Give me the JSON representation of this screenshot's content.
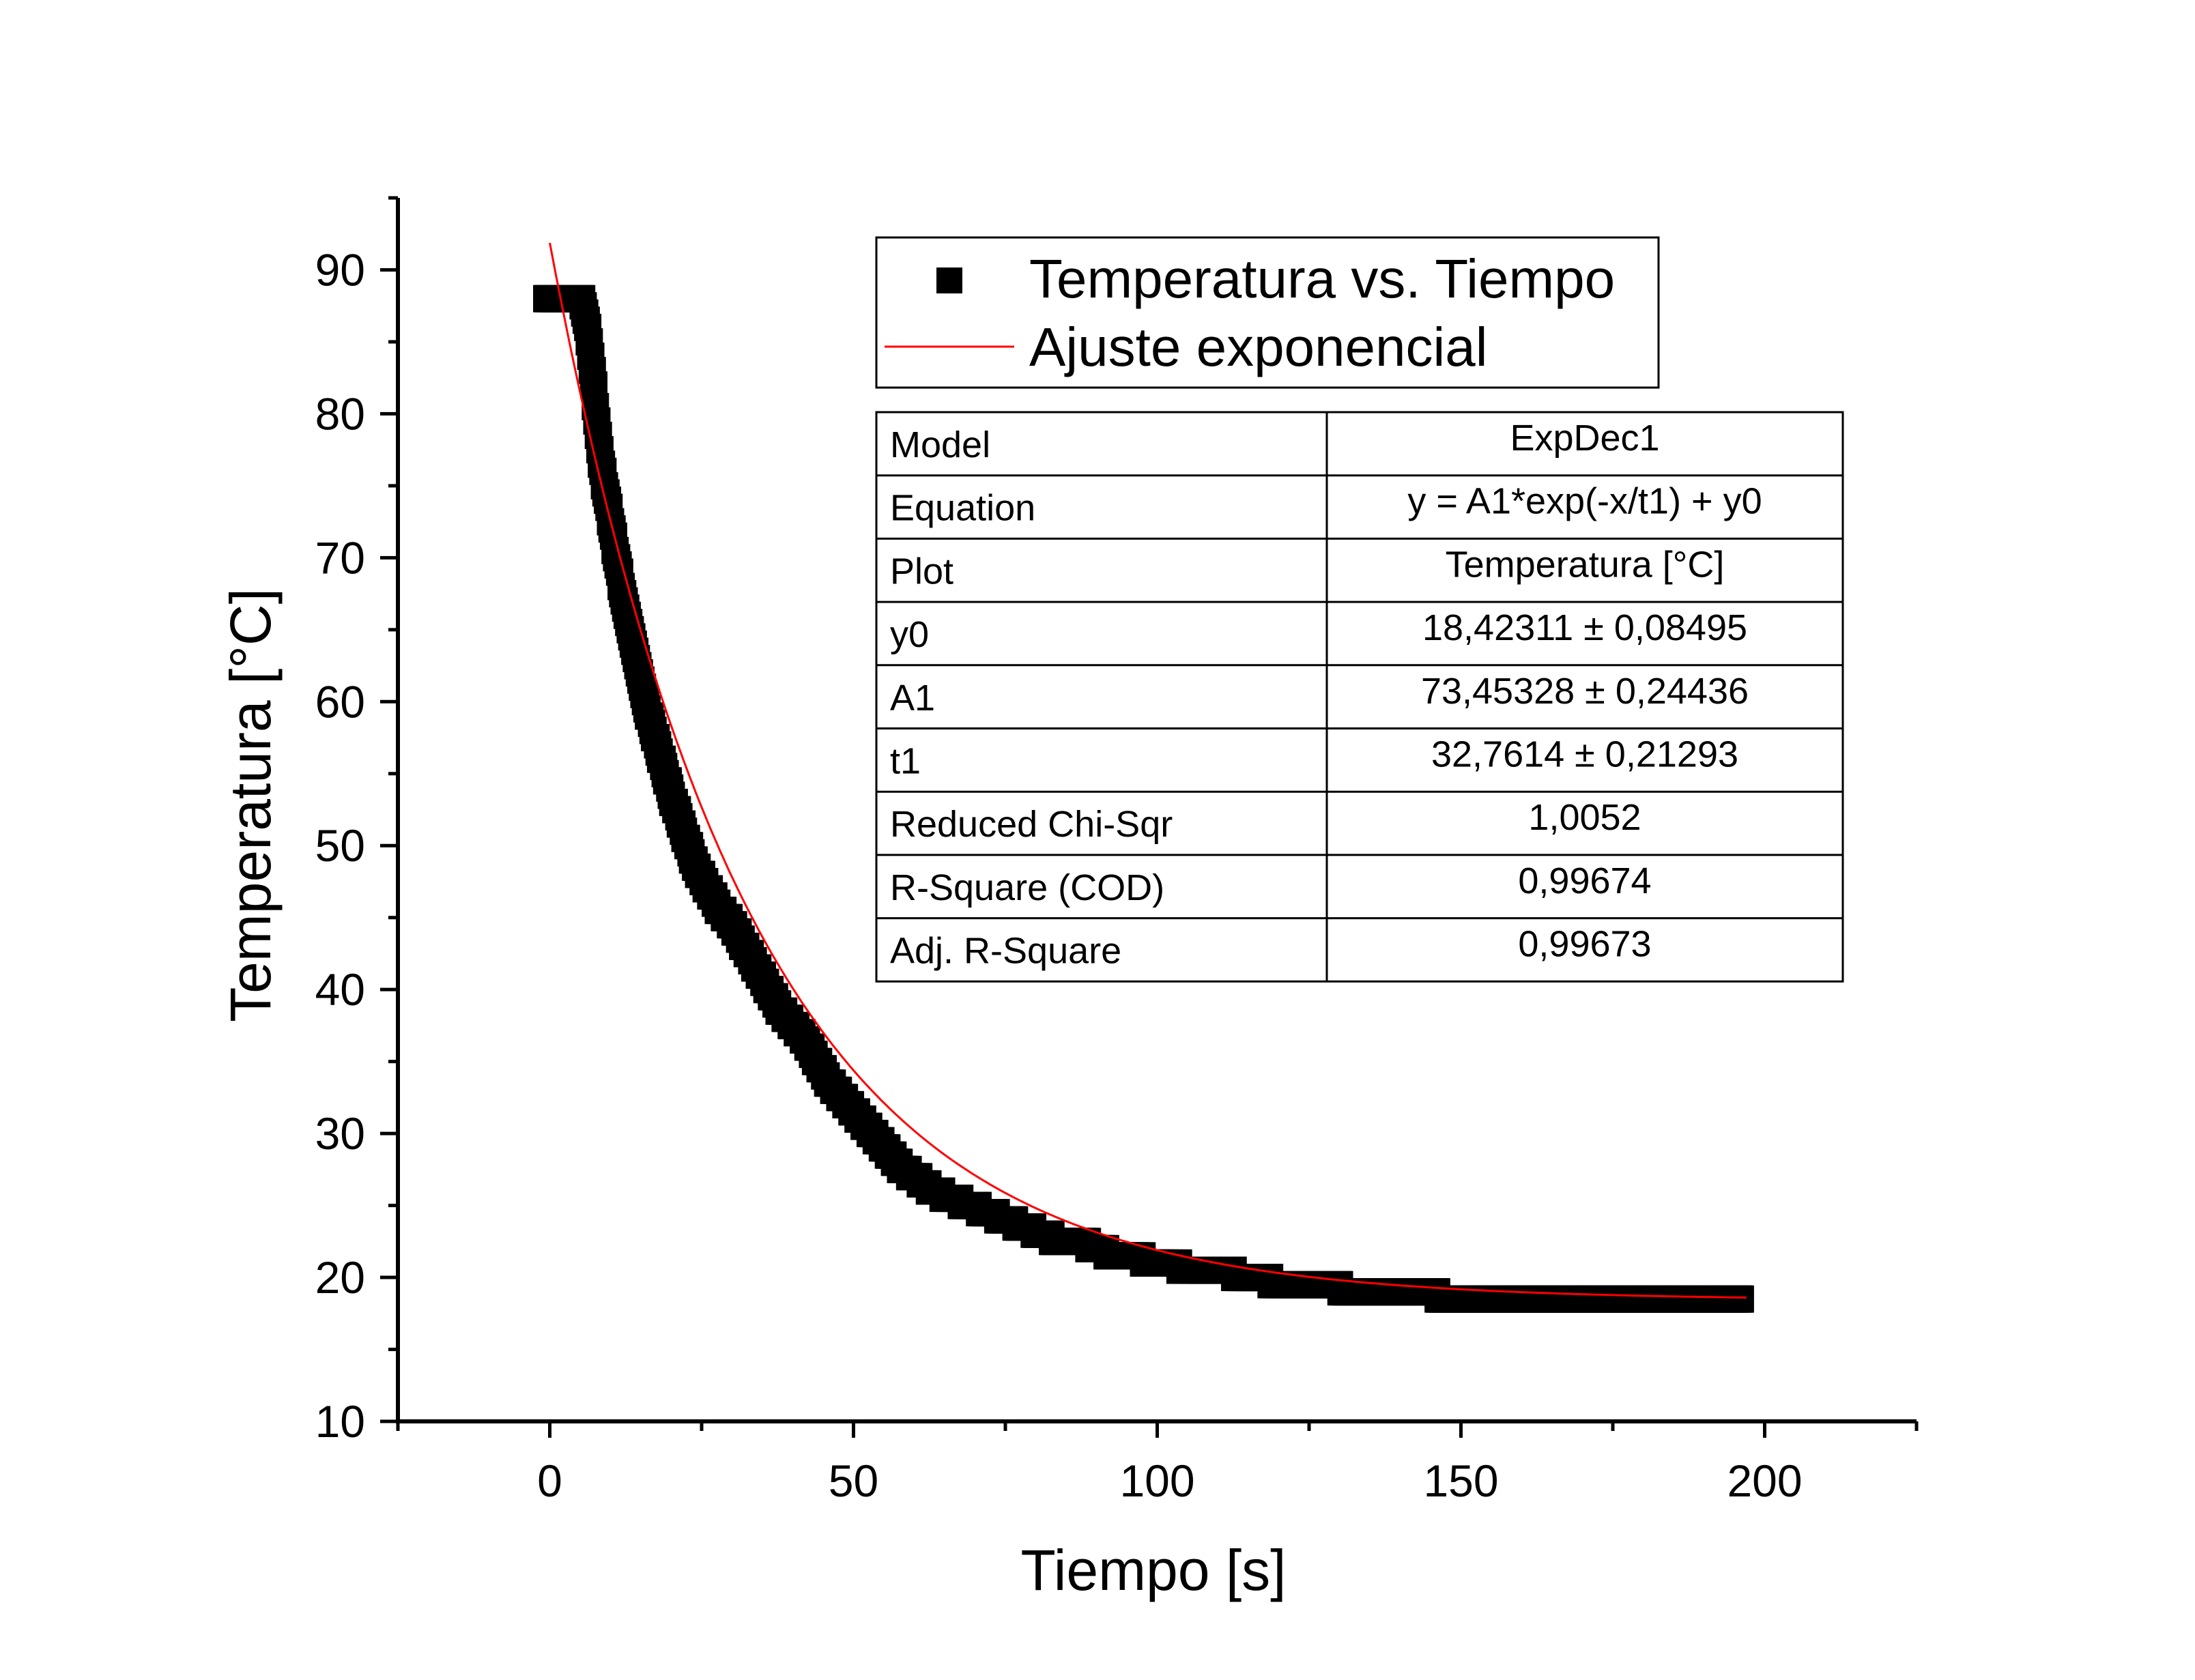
{
  "chart_data": {
    "type": "scatter",
    "xlabel": "Tiempo [s]",
    "ylabel": "Temperatura [°C]",
    "xlim": [
      -25,
      225
    ],
    "ylim": [
      10,
      95
    ],
    "x_ticks": [
      "0",
      "50",
      "100",
      "150",
      "200"
    ],
    "x_tick_values": [
      0,
      50,
      100,
      150,
      200
    ],
    "y_ticks": [
      "10",
      "20",
      "30",
      "40",
      "50",
      "60",
      "70",
      "80",
      "90"
    ],
    "y_tick_values": [
      10,
      20,
      30,
      40,
      50,
      60,
      70,
      80,
      90
    ],
    "grid": false,
    "legend_position": "top-right",
    "series": [
      {
        "name": "Temperatura vs. Tiempo",
        "kind": "scatter",
        "marker": "square",
        "color": "#000000",
        "x": [
          -0.5,
          0,
          0.5,
          1,
          1.5,
          2,
          2.5,
          3,
          3.5,
          4,
          4.5,
          5,
          5.5,
          6,
          6.5,
          7,
          7.5,
          8,
          8.5,
          9,
          9.5,
          10,
          11,
          12,
          13,
          14,
          15,
          16,
          17,
          18,
          19,
          20,
          22,
          24,
          26,
          28,
          30,
          32,
          34,
          36,
          38,
          40,
          42,
          44,
          46,
          48,
          50,
          52,
          54,
          56,
          58,
          60,
          63,
          66,
          69,
          72,
          75,
          78,
          81,
          84,
          87,
          90,
          93,
          96,
          99,
          102,
          105,
          108,
          111,
          114,
          117,
          120,
          124,
          128,
          132,
          136,
          140,
          144,
          148,
          152,
          156,
          160,
          164,
          168,
          172,
          176,
          180,
          184,
          188,
          192,
          196
        ],
        "y": [
          88,
          88,
          88,
          88,
          88,
          88,
          88,
          88,
          88,
          88,
          88,
          88,
          87.5,
          86.5,
          85,
          83,
          80.5,
          78.5,
          76.5,
          75,
          74,
          72.5,
          70,
          67.5,
          65.5,
          63.5,
          61.5,
          59.5,
          58,
          56.5,
          55,
          53.5,
          51,
          48.5,
          47,
          45.5,
          44.5,
          43,
          41.5,
          40,
          38.5,
          37.5,
          36.5,
          35,
          33.5,
          32.5,
          31.5,
          30.5,
          29.5,
          28.5,
          27.5,
          27,
          26,
          25.5,
          25,
          24.5,
          24,
          23.5,
          23,
          22.5,
          22.5,
          22,
          21.5,
          21.5,
          21,
          21,
          20.5,
          20.5,
          20.5,
          20,
          20,
          19.5,
          19.5,
          19.5,
          19,
          19,
          19,
          19,
          18.5,
          18.5,
          18.5,
          18.5,
          18.5,
          18.5,
          18.5,
          18.5,
          18.5,
          18.5,
          18.5,
          18.5,
          18.5
        ]
      },
      {
        "name": "Ajuste exponencial",
        "kind": "line",
        "color": "#ff0000",
        "model": "y = A1*exp(-x/t1) + y0",
        "params": {
          "y0": 18.42311,
          "A1": 73.45328,
          "t1": 32.7614
        },
        "x_range": [
          0,
          197
        ]
      }
    ],
    "fit_table": {
      "rows": [
        {
          "label": "Model",
          "value": "ExpDec1"
        },
        {
          "label": "Equation",
          "value": "y = A1*exp(-x/t1) + y0"
        },
        {
          "label": "Plot",
          "value": "Temperatura [°C]"
        },
        {
          "label": "y0",
          "value": "18,42311 ± 0,08495"
        },
        {
          "label": "A1",
          "value": "73,45328 ± 0,24436"
        },
        {
          "label": "t1",
          "value": "32,7614 ± 0,21293"
        },
        {
          "label": "Reduced Chi-Sqr",
          "value": "1,0052"
        },
        {
          "label": "R-Square (COD)",
          "value": "0,99674"
        },
        {
          "label": "Adj. R-Square",
          "value": "0,99673"
        }
      ]
    }
  }
}
